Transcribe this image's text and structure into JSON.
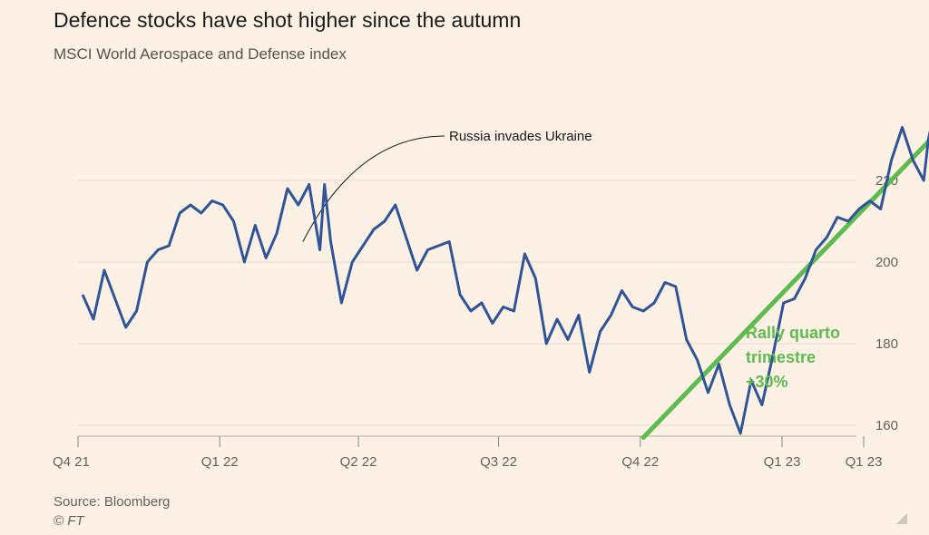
{
  "chart_data": {
    "type": "line",
    "title": "Defence stocks have shot higher since the autumn",
    "subtitle": "MSCI World Aerospace and Defense index",
    "source": "Source: Bloomberg",
    "copyright": "© FT",
    "xlabel": "",
    "ylabel": "",
    "ylim": [
      155,
      233
    ],
    "y_ticks": [
      160,
      180,
      200,
      220
    ],
    "x_ticks": [
      {
        "label": "Q4 21",
        "date": "2021-10-01"
      },
      {
        "label": "Q1 22",
        "date": "2022-01-01"
      },
      {
        "label": "Q2 22",
        "date": "2022-04-01"
      },
      {
        "label": "Q3 22",
        "date": "2022-07-01"
      },
      {
        "label": "Q4 22",
        "date": "2022-10-01"
      },
      {
        "label": "Q1 23",
        "date": "2023-01-01"
      },
      {
        "label": "Q1 23",
        "date": "2023-02-23"
      }
    ],
    "grid": true,
    "series": [
      {
        "color": "#2f5597",
        "points": [
          [
            "2021-10-04",
            192
          ],
          [
            "2021-10-11",
            186
          ],
          [
            "2021-10-18",
            198
          ],
          [
            "2021-10-25",
            191
          ],
          [
            "2021-11-01",
            184
          ],
          [
            "2021-11-08",
            188
          ],
          [
            "2021-11-15",
            200
          ],
          [
            "2021-11-22",
            203
          ],
          [
            "2021-11-29",
            204
          ],
          [
            "2021-12-06",
            212
          ],
          [
            "2021-12-13",
            214
          ],
          [
            "2021-12-20",
            212
          ],
          [
            "2021-12-27",
            215
          ],
          [
            "2022-01-03",
            214
          ],
          [
            "2022-01-10",
            210
          ],
          [
            "2022-01-17",
            200
          ],
          [
            "2022-01-24",
            209
          ],
          [
            "2022-01-31",
            201
          ],
          [
            "2022-02-07",
            207
          ],
          [
            "2022-02-14",
            218
          ],
          [
            "2022-02-21",
            214
          ],
          [
            "2022-02-28",
            219
          ],
          [
            "2022-03-07",
            203
          ],
          [
            "2022-03-10",
            219
          ],
          [
            "2022-03-14",
            205
          ],
          [
            "2022-03-21",
            190
          ],
          [
            "2022-03-28",
            200
          ],
          [
            "2022-04-04",
            204
          ],
          [
            "2022-04-11",
            208
          ],
          [
            "2022-04-18",
            210
          ],
          [
            "2022-04-25",
            214
          ],
          [
            "2022-05-02",
            206
          ],
          [
            "2022-05-09",
            198
          ],
          [
            "2022-05-16",
            203
          ],
          [
            "2022-05-23",
            204
          ],
          [
            "2022-05-30",
            205
          ],
          [
            "2022-06-06",
            192
          ],
          [
            "2022-06-13",
            188
          ],
          [
            "2022-06-20",
            190
          ],
          [
            "2022-06-27",
            185
          ],
          [
            "2022-07-04",
            189
          ],
          [
            "2022-07-11",
            188
          ],
          [
            "2022-07-18",
            202
          ],
          [
            "2022-07-25",
            196
          ],
          [
            "2022-08-01",
            180
          ],
          [
            "2022-08-08",
            186
          ],
          [
            "2022-08-15",
            181
          ],
          [
            "2022-08-22",
            187
          ],
          [
            "2022-08-29",
            173
          ],
          [
            "2022-09-05",
            183
          ],
          [
            "2022-09-12",
            187
          ],
          [
            "2022-09-19",
            193
          ],
          [
            "2022-09-26",
            189
          ],
          [
            "2022-10-03",
            188
          ],
          [
            "2022-10-10",
            190
          ],
          [
            "2022-10-17",
            195
          ],
          [
            "2022-10-24",
            194
          ],
          [
            "2022-10-31",
            181
          ],
          [
            "2022-11-07",
            176
          ],
          [
            "2022-11-14",
            168
          ],
          [
            "2022-11-21",
            175
          ],
          [
            "2022-11-28",
            165
          ],
          [
            "2022-12-05",
            158
          ],
          [
            "2022-12-12",
            171
          ],
          [
            "2022-12-19",
            165
          ],
          [
            "2022-12-26",
            177
          ],
          [
            "2023-01-02",
            190
          ],
          [
            "2023-01-09",
            191
          ],
          [
            "2023-01-16",
            196
          ],
          [
            "2023-01-23",
            203
          ],
          [
            "2023-01-30",
            206
          ],
          [
            "2023-02-06",
            211
          ],
          [
            "2023-02-13",
            210
          ],
          [
            "2023-02-20",
            213
          ],
          [
            "2023-02-27",
            215
          ],
          [
            "2023-03-06",
            213
          ],
          [
            "2023-03-13",
            225
          ],
          [
            "2023-03-20",
            233
          ],
          [
            "2023-03-27",
            225
          ],
          [
            "2023-04-03",
            220
          ],
          [
            "2023-04-06",
            230
          ],
          [
            "2023-04-10",
            237
          ]
        ]
      }
    ],
    "annotations": [
      {
        "text": "Russia invades Ukraine",
        "date": "2022-02-24",
        "value": 205
      }
    ],
    "trendline": {
      "color": "#5dbb4f",
      "start": [
        "2022-10-03",
        157
      ],
      "end": [
        "2023-04-20",
        235
      ]
    },
    "rally_label": {
      "lines": [
        "Rally quarto",
        "trimestre",
        "+30%"
      ]
    }
  }
}
